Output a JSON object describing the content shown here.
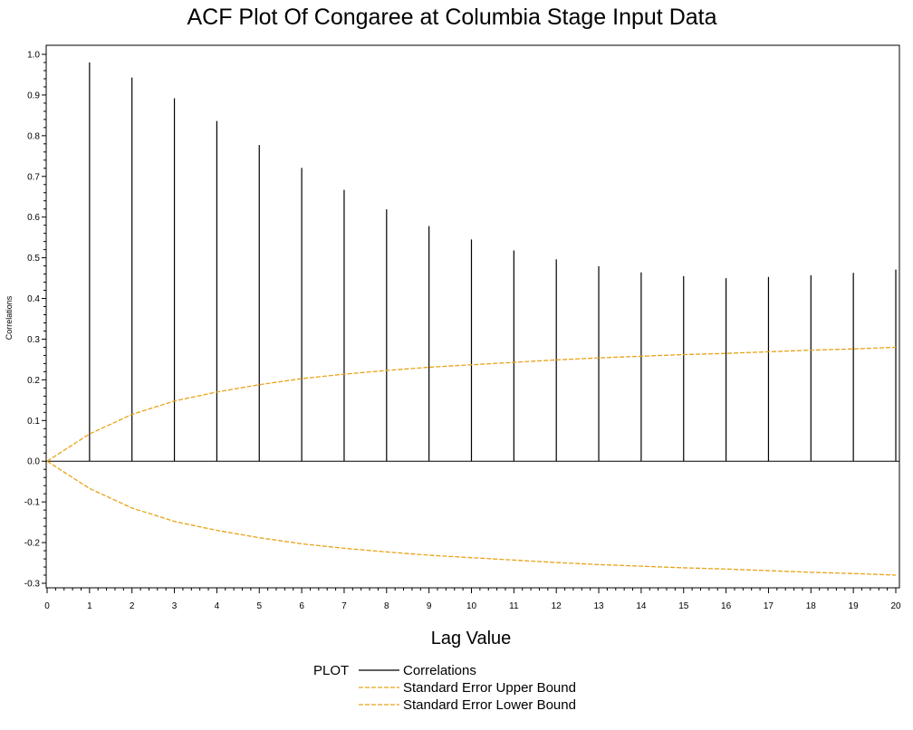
{
  "chart_data": {
    "type": "bar",
    "title": "ACF Plot Of Congaree at Columbia Stage Input Data",
    "xlabel": "Lag Value",
    "ylabel": "Correlations",
    "xlim": [
      0,
      20
    ],
    "ylim": [
      -0.3,
      1.0
    ],
    "x_ticks": [
      0,
      1,
      2,
      3,
      4,
      5,
      6,
      7,
      8,
      9,
      10,
      11,
      12,
      13,
      14,
      15,
      16,
      17,
      18,
      19,
      20
    ],
    "y_ticks": [
      -0.3,
      -0.2,
      -0.1,
      0.0,
      0.1,
      0.2,
      0.3,
      0.4,
      0.5,
      0.6,
      0.7,
      0.8,
      0.9,
      1.0
    ],
    "y_tick_labels": [
      "-0.3",
      "-0.2",
      "-0.1",
      "0.0",
      "0.1",
      "0.2",
      "0.3",
      "0.4",
      "0.5",
      "0.6",
      "0.7",
      "0.8",
      "0.9",
      "1.0"
    ],
    "grid": false,
    "legend": {
      "title": "PLOT",
      "placement": "bottom"
    },
    "series": [
      {
        "name": "Correlations",
        "style": "needle",
        "color": "#000000",
        "x": [
          1,
          2,
          3,
          4,
          5,
          6,
          7,
          8,
          9,
          10,
          11,
          12,
          13,
          14,
          15,
          16,
          17,
          18,
          19,
          20
        ],
        "values": [
          0.98,
          0.943,
          0.892,
          0.836,
          0.777,
          0.721,
          0.667,
          0.619,
          0.578,
          0.545,
          0.518,
          0.496,
          0.479,
          0.464,
          0.455,
          0.45,
          0.453,
          0.457,
          0.463,
          0.471
        ]
      },
      {
        "name": "Standard Error Upper Bound",
        "style": "dashed-line",
        "color": "#E8A317",
        "x": [
          0,
          1,
          2,
          3,
          4,
          5,
          6,
          7,
          8,
          9,
          10,
          11,
          12,
          13,
          14,
          15,
          16,
          17,
          18,
          19,
          20
        ],
        "values": [
          0.0,
          0.067,
          0.115,
          0.148,
          0.17,
          0.188,
          0.203,
          0.214,
          0.223,
          0.231,
          0.237,
          0.243,
          0.249,
          0.254,
          0.258,
          0.262,
          0.265,
          0.269,
          0.273,
          0.276,
          0.28
        ]
      },
      {
        "name": "Standard Error Lower Bound",
        "style": "dashed-line",
        "color": "#E8A317",
        "x": [
          0,
          1,
          2,
          3,
          4,
          5,
          6,
          7,
          8,
          9,
          10,
          11,
          12,
          13,
          14,
          15,
          16,
          17,
          18,
          19,
          20
        ],
        "values": [
          0.0,
          -0.067,
          -0.115,
          -0.148,
          -0.17,
          -0.188,
          -0.203,
          -0.214,
          -0.223,
          -0.231,
          -0.237,
          -0.243,
          -0.249,
          -0.254,
          -0.258,
          -0.262,
          -0.265,
          -0.269,
          -0.273,
          -0.276,
          -0.28
        ]
      }
    ]
  }
}
